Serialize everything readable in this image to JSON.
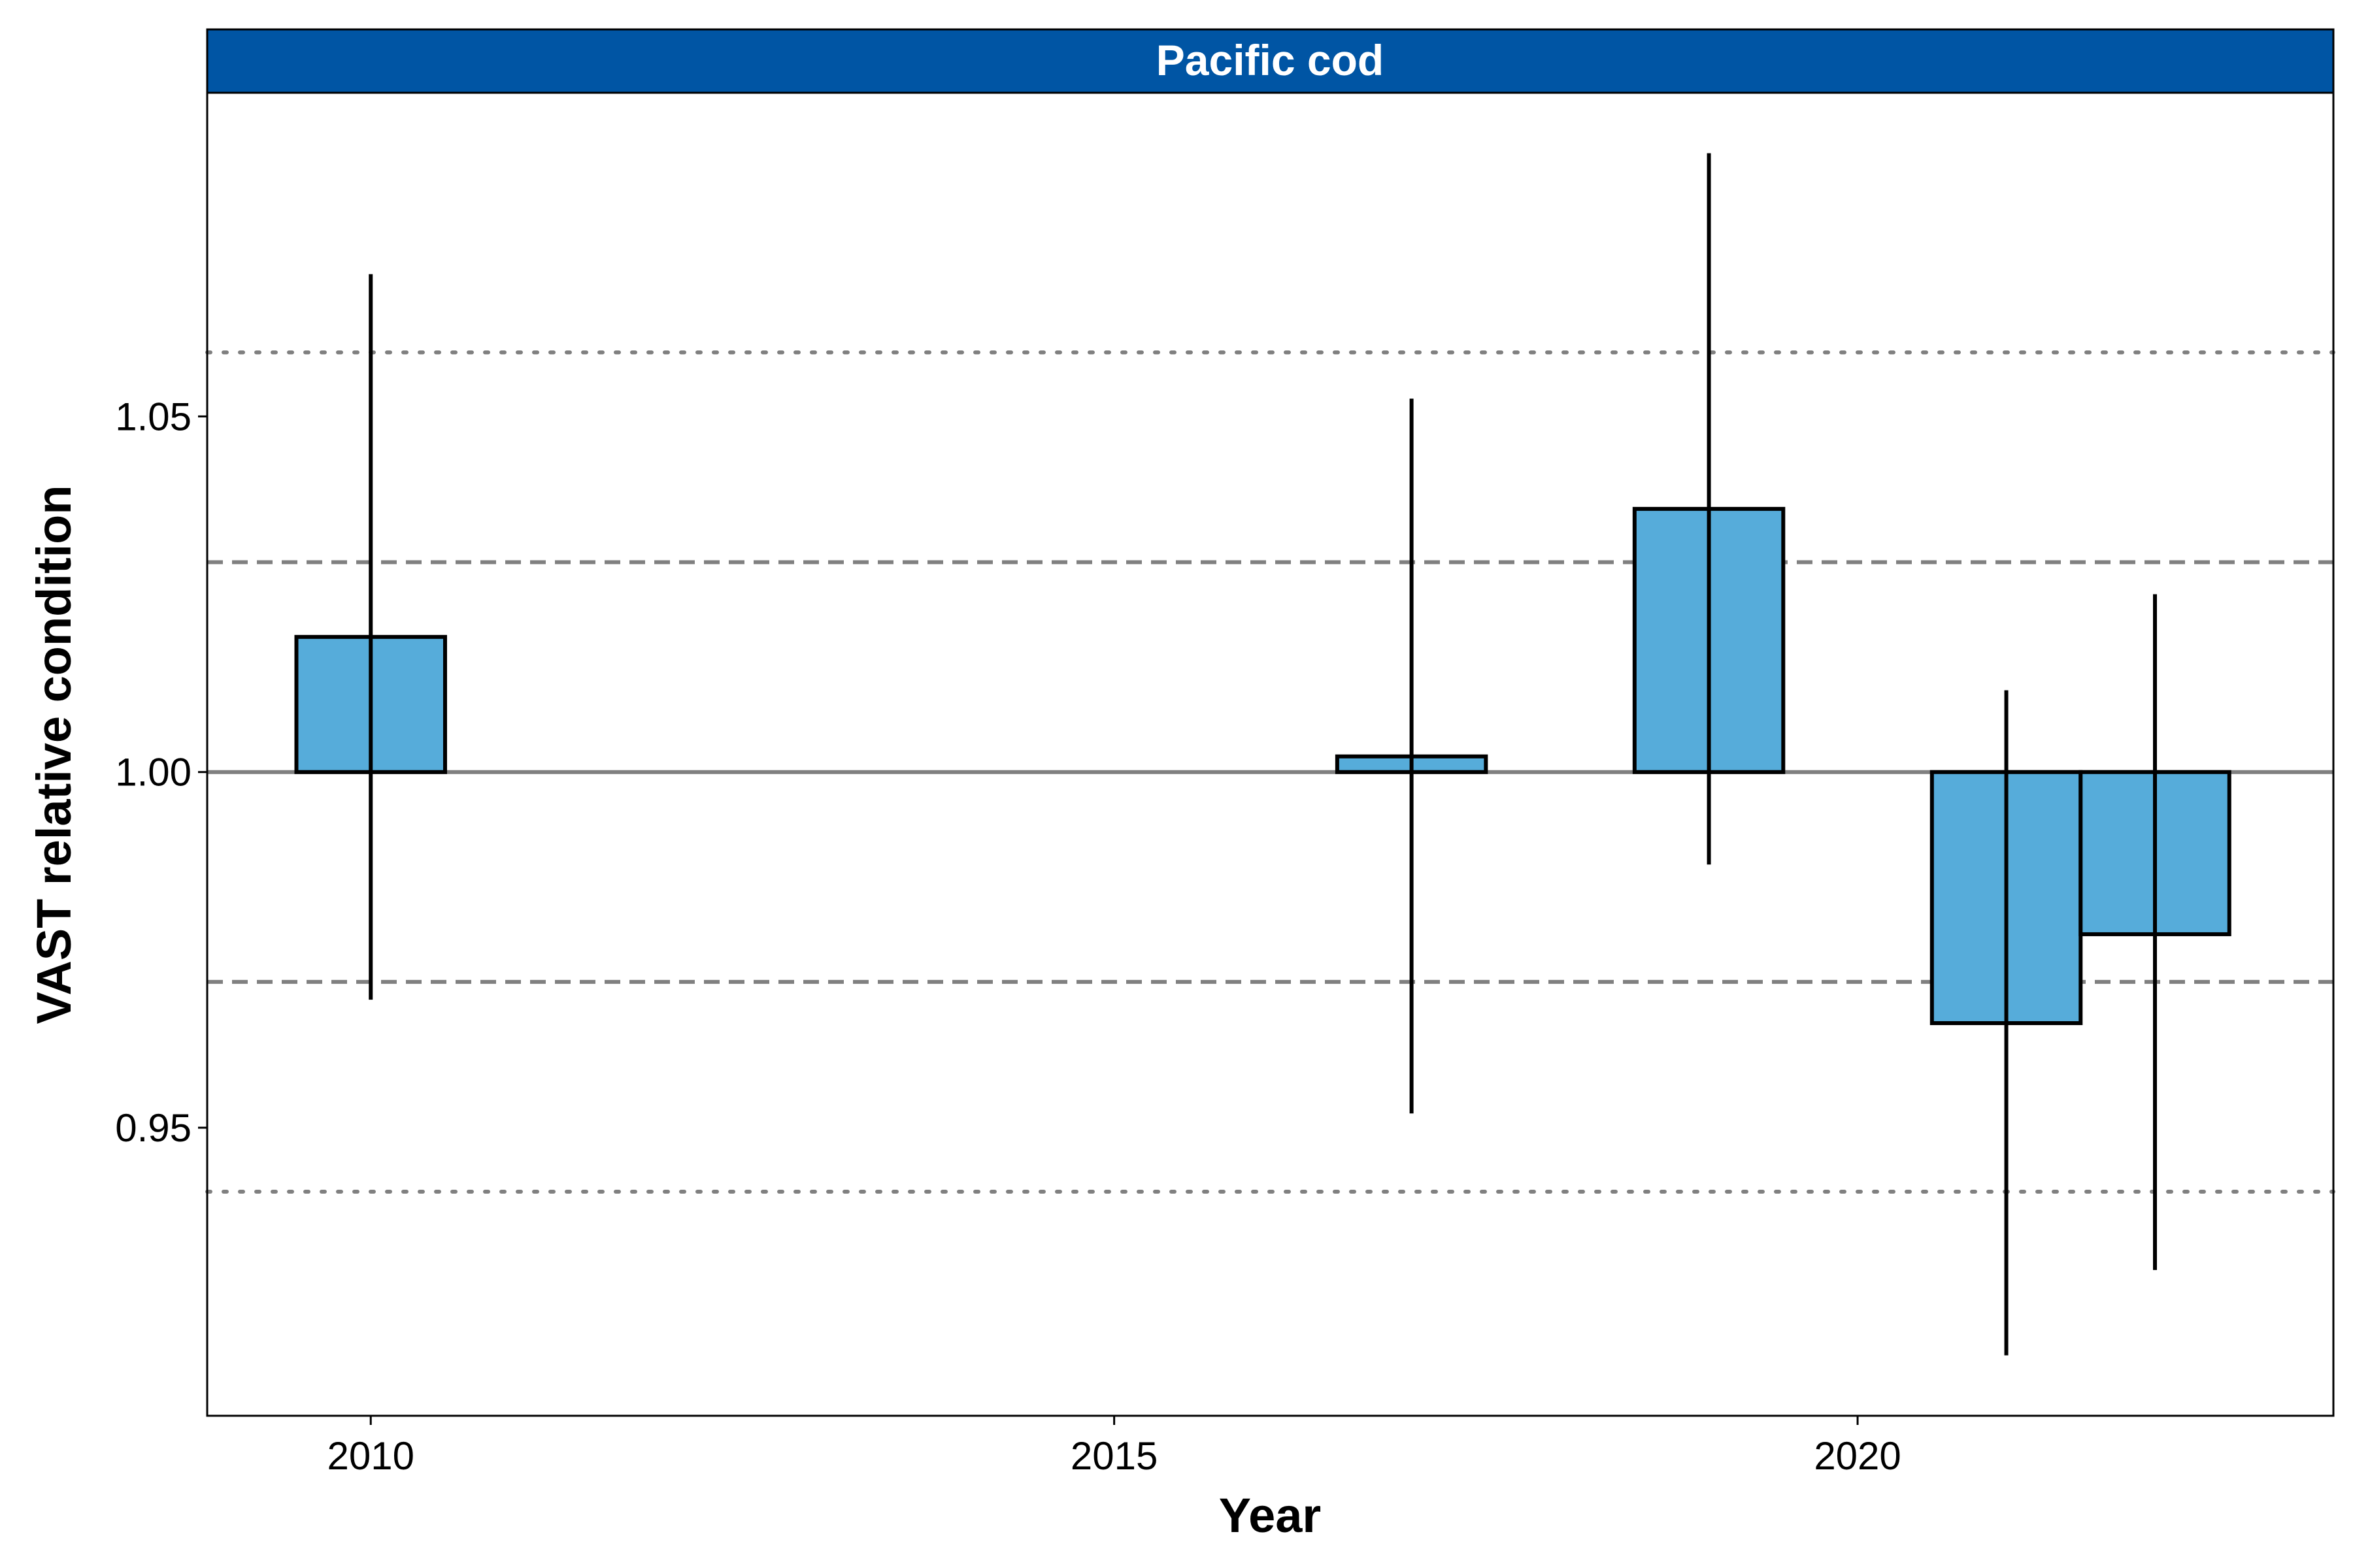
{
  "chart_data": {
    "type": "bar",
    "panel_title": "Pacific cod",
    "xlabel": "Year",
    "ylabel": "VAST relative condition",
    "x_ticks": [
      2010,
      2015,
      2020
    ],
    "x_tick_labels": [
      "2010",
      "2015",
      "2020"
    ],
    "y_ticks": [
      0.95,
      1.0,
      1.05
    ],
    "y_tick_labels": [
      "0.95",
      "1.00",
      "1.05"
    ],
    "xlim": [
      2008.9,
      2023.2
    ],
    "ylim": [
      0.9095,
      1.0955
    ],
    "baseline": 1.0,
    "reference_lines": [
      {
        "value": 1.0,
        "style": "solid"
      },
      {
        "value": 1.0295,
        "style": "dashed"
      },
      {
        "value": 0.9705,
        "style": "dashed"
      },
      {
        "value": 1.059,
        "style": "dotted"
      },
      {
        "value": 0.941,
        "style": "dotted"
      }
    ],
    "bar_width_years": 1.0,
    "fill_color": "#56ACDA",
    "strip_color": "#0055A4",
    "points": [
      {
        "year": 2010,
        "value": 1.019,
        "lower": 0.968,
        "upper": 1.07
      },
      {
        "year": 2017,
        "value": 1.0022,
        "lower": 0.952,
        "upper": 1.0525
      },
      {
        "year": 2019,
        "value": 1.037,
        "lower": 0.987,
        "upper": 1.087
      },
      {
        "year": 2021,
        "value": 0.9647,
        "lower": 0.918,
        "upper": 1.0115
      },
      {
        "year": 2022,
        "value": 0.9772,
        "lower": 0.93,
        "upper": 1.025
      }
    ]
  }
}
